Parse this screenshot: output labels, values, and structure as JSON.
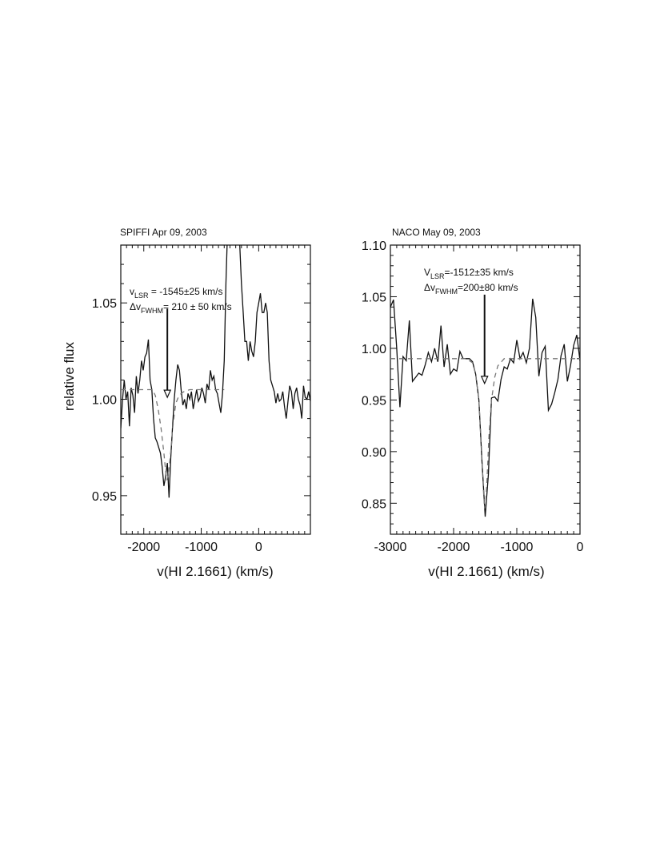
{
  "figure": {
    "y_axis_label": "relative flux"
  },
  "chart_data": [
    {
      "type": "line",
      "panel_title": "SPIFFI Apr 09, 2003",
      "xlabel": "v(HI 2.1661) (km/s)",
      "ylabel": "relative flux",
      "xlim": [
        -2400,
        900
      ],
      "ylim": [
        0.93,
        1.08
      ],
      "x_ticks": [
        -2000,
        -1000,
        0
      ],
      "x_tick_labels": [
        "-2000",
        "-1000",
        "0"
      ],
      "y_ticks": [
        0.95,
        1.0,
        1.05
      ],
      "y_tick_labels": [
        "0.95",
        "1.00",
        "1.05"
      ],
      "annotation": {
        "line1_prefix": "v",
        "line1_sub": "LSR",
        "line1_rest": " = -1545±25 km/s",
        "line2_prefix": "Δv",
        "line2_sub": "FWHM",
        "line2_rest": "= 210 ± 50 km/s"
      },
      "arrow_x": -1590,
      "arrow_y_top": 1.047,
      "arrow_y_tip": 1.001,
      "series": [
        {
          "style": "solid",
          "color": "#111111",
          "x": [
            -2400,
            -2370,
            -2340,
            -2310,
            -2280,
            -2250,
            -2220,
            -2190,
            -2160,
            -2130,
            -2100,
            -2070,
            -2040,
            -2010,
            -1980,
            -1950,
            -1920,
            -1890,
            -1860,
            -1830,
            -1800,
            -1770,
            -1740,
            -1710,
            -1680,
            -1650,
            -1620,
            -1590,
            -1560,
            -1530,
            -1500,
            -1470,
            -1440,
            -1410,
            -1380,
            -1350,
            -1320,
            -1290,
            -1260,
            -1230,
            -1200,
            -1170,
            -1140,
            -1110,
            -1080,
            -1050,
            -1020,
            -990,
            -960,
            -930,
            -900,
            -870,
            -840,
            -810,
            -780,
            -750,
            -720,
            -690,
            -660,
            -630,
            -600,
            -570,
            -540,
            -510,
            -480,
            -450,
            -420,
            -390,
            -360,
            -330,
            -300,
            -270,
            -240,
            -210,
            -180,
            -150,
            -120,
            -90,
            -60,
            -30,
            0,
            30,
            60,
            90,
            120,
            150,
            180,
            210,
            240,
            270,
            300,
            330,
            360,
            390,
            420,
            450,
            480,
            510,
            540,
            570,
            600,
            630,
            660,
            690,
            720,
            750,
            780,
            810,
            840,
            870,
            900
          ],
          "y": [
            0.985,
            1.0,
            1.01,
            1.0,
            1.004,
            0.986,
            1.006,
            1.002,
            0.993,
            1.012,
            1.003,
            1.01,
            1.02,
            1.015,
            1.022,
            1.024,
            1.031,
            1.01,
            1.005,
            0.99,
            0.98,
            0.978,
            0.975,
            0.972,
            0.965,
            0.955,
            0.96,
            0.967,
            0.949,
            0.97,
            0.985,
            1.0,
            1.01,
            1.018,
            1.015,
            1.005,
            0.997,
            1.0,
            0.995,
            1.003,
            1.0,
            1.004,
            0.995,
            1.0,
            1.005,
            0.999,
            1.001,
            1.006,
            1.003,
            0.998,
            1.008,
            1.005,
            1.015,
            1.01,
            1.012,
            1.005,
            1.003,
            0.998,
            0.993,
            1.003,
            1.02,
            1.06,
            1.09,
            1.09,
            1.095,
            1.09,
            1.09,
            1.09,
            1.095,
            1.08,
            1.06,
            1.045,
            1.03,
            1.03,
            1.02,
            1.03,
            1.025,
            1.022,
            1.03,
            1.045,
            1.05,
            1.055,
            1.045,
            1.045,
            1.05,
            1.045,
            1.02,
            1.01,
            1.007,
            1.004,
            0.998,
            1.003,
            0.999,
            1.0,
            1.004,
            0.996,
            0.99,
            0.999,
            1.007,
            1.004,
            0.995,
            1.003,
            1.006,
            1.0,
            0.997,
            0.99,
            1.007,
            1.001,
            1.0,
            1.004,
            0.999
          ]
        },
        {
          "style": "dashed",
          "color": "#777777",
          "x": [
            -2400,
            -2200,
            -2000,
            -1850,
            -1800,
            -1750,
            -1700,
            -1650,
            -1620,
            -1600,
            -1580,
            -1550,
            -1520,
            -1500,
            -1470,
            -1440,
            -1400,
            -1350,
            -1300,
            -1200,
            -1000,
            -800,
            -600
          ],
          "y": [
            1.005,
            1.005,
            1.005,
            1.005,
            1.002,
            0.995,
            0.985,
            0.972,
            0.963,
            0.958,
            0.96,
            0.967,
            0.976,
            0.984,
            0.992,
            0.998,
            1.001,
            1.003,
            1.004,
            1.005,
            1.005,
            1.005,
            1.005
          ]
        }
      ]
    },
    {
      "type": "line",
      "panel_title": "NACO May 09, 2003",
      "xlabel": "v(HI 2.1661)  (km/s)",
      "ylabel": "",
      "xlim": [
        -3000,
        0
      ],
      "ylim": [
        0.82,
        1.1
      ],
      "x_ticks": [
        -3000,
        -2000,
        -1000,
        0
      ],
      "x_tick_labels": [
        "-3000",
        "-2000",
        "-1000",
        "0"
      ],
      "y_ticks": [
        0.85,
        0.9,
        0.95,
        1.0,
        1.05,
        1.1
      ],
      "y_tick_labels": [
        "0.85",
        "0.90",
        "0.95",
        "1.00",
        "1.05",
        "1.10"
      ],
      "annotation": {
        "line1_prefix": "V",
        "line1_sub": "LSR",
        "line1_rest": "=-1512±35 km/s",
        "line2_prefix": "Δv",
        "line2_sub": "FWHM",
        "line2_rest": "=200±80 km/s"
      },
      "arrow_x": -1510,
      "arrow_y_top": 1.052,
      "arrow_y_tip": 0.966,
      "series": [
        {
          "style": "solid",
          "color": "#111111",
          "x": [
            -3000,
            -2950,
            -2900,
            -2850,
            -2800,
            -2750,
            -2700,
            -2650,
            -2600,
            -2550,
            -2500,
            -2450,
            -2400,
            -2350,
            -2300,
            -2250,
            -2200,
            -2150,
            -2100,
            -2050,
            -2000,
            -1950,
            -1900,
            -1850,
            -1800,
            -1750,
            -1700,
            -1650,
            -1600,
            -1550,
            -1500,
            -1450,
            -1400,
            -1350,
            -1300,
            -1250,
            -1200,
            -1150,
            -1100,
            -1050,
            -1000,
            -950,
            -900,
            -850,
            -800,
            -750,
            -700,
            -650,
            -600,
            -550,
            -500,
            -450,
            -400,
            -350,
            -300,
            -250,
            -200,
            -150,
            -100,
            -50,
            0
          ],
          "y": [
            1.04,
            1.047,
            1.0,
            0.943,
            0.992,
            0.988,
            1.027,
            0.968,
            0.972,
            0.976,
            0.974,
            0.984,
            0.996,
            0.987,
            1.0,
            0.987,
            1.022,
            0.982,
            1.004,
            0.975,
            0.98,
            0.978,
            0.997,
            0.99,
            0.99,
            0.99,
            0.987,
            0.975,
            0.95,
            0.89,
            0.837,
            0.878,
            0.952,
            0.953,
            0.949,
            0.97,
            0.982,
            0.98,
            0.99,
            0.986,
            1.008,
            0.99,
            0.996,
            0.986,
            1.0,
            1.048,
            1.03,
            0.973,
            0.996,
            1.002,
            0.94,
            0.946,
            0.957,
            0.97,
            0.993,
            1.004,
            0.968,
            0.983,
            1.003,
            1.013,
            0.988
          ]
        },
        {
          "style": "dashed",
          "color": "#777777",
          "x": [
            -3000,
            -2500,
            -2000,
            -1800,
            -1700,
            -1650,
            -1600,
            -1560,
            -1530,
            -1510,
            -1490,
            -1470,
            -1440,
            -1400,
            -1350,
            -1300,
            -1200,
            -1000,
            -500,
            0
          ],
          "y": [
            0.99,
            0.99,
            0.99,
            0.99,
            0.986,
            0.975,
            0.95,
            0.905,
            0.865,
            0.845,
            0.852,
            0.875,
            0.915,
            0.95,
            0.972,
            0.983,
            0.99,
            0.99,
            0.99,
            0.99
          ]
        }
      ]
    }
  ]
}
